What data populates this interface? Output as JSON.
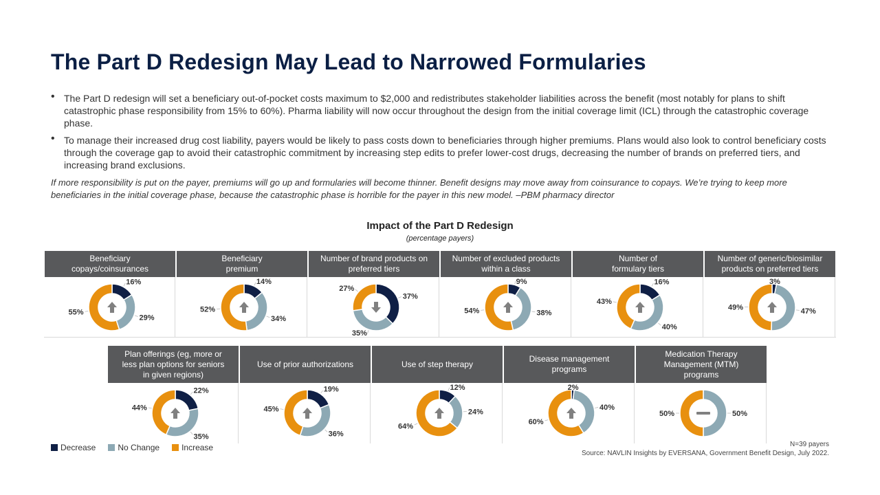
{
  "title": "The Part D Redesign May Lead to Narrowed Formularies",
  "bullets": [
    "The Part D redesign will set a beneficiary out-of-pocket costs maximum to $2,000 and redistributes stakeholder liabilities across the benefit (most notably for plans to shift catastrophic phase responsibility from 15% to 60%). Pharma liability will now occur throughout  the design from the initial coverage limit (ICL) through the catastrophic coverage phase.",
    "To manage their increased drug cost liability, payers would be likely to pass costs down to beneficiaries through  higher premiums. Plans would also look to control beneficiary costs through the coverage gap to avoid their catastrophic commitment by increasing step edits to prefer lower-cost drugs, decreasing the number of brands on preferred tiers, and increasing brand exclusions."
  ],
  "quote": "If more responsibility is put on the payer, premiums will go up and formularies will become thinner. Benefit designs may move away from coinsurance to copays. We’re trying to keep more beneficiaries in the initial coverage phase, because the catastrophic phase is horrible for the payer in this new model. –PBM pharmacy director",
  "colors": {
    "decrease": "#0f1f45",
    "no_change": "#8da9b4",
    "increase": "#e8900f",
    "header": "#58595b"
  },
  "legend": [
    {
      "key": "decrease",
      "label": "Decrease"
    },
    {
      "key": "no_change",
      "label": "No Change"
    },
    {
      "key": "increase",
      "label": "Increase"
    }
  ],
  "note": "N=39 payers",
  "source": "Source: NAVLIN Insights by EVERSANA, Government Benefit Design, July 2022.",
  "chart_data": {
    "type": "pie",
    "title": "Impact of the Part D Redesign",
    "subtitle": "(percentage  payers)",
    "series_names": [
      "Decrease",
      "No Change",
      "Increase"
    ],
    "panels": [
      {
        "label_lines": [
          "Beneficiary",
          "copays/coinsurances"
        ],
        "decrease": 16,
        "no_change": 29,
        "increase": 55,
        "direction_icon": "arrow-up"
      },
      {
        "label_lines": [
          "Beneficiary",
          "premium"
        ],
        "decrease": 14,
        "no_change": 34,
        "increase": 52,
        "direction_icon": "arrow-up"
      },
      {
        "label_lines": [
          "Number of brand products on",
          "preferred tiers"
        ],
        "decrease": 37,
        "no_change": 35,
        "increase": 27,
        "direction_icon": "arrow-down"
      },
      {
        "label_lines": [
          "Number of excluded products",
          "within a class"
        ],
        "decrease": 9,
        "no_change": 38,
        "increase": 54,
        "direction_icon": "arrow-up"
      },
      {
        "label_lines": [
          "Number of",
          "formulary tiers"
        ],
        "decrease": 16,
        "no_change": 40,
        "increase": 43,
        "direction_icon": "arrow-up"
      },
      {
        "label_lines": [
          "Number of generic/biosimilar",
          "products on preferred tiers"
        ],
        "decrease": 3,
        "no_change": 47,
        "increase": 49,
        "direction_icon": "arrow-up"
      },
      {
        "label_lines": [
          "Plan offerings (eg, more or",
          "less plan options for seniors",
          "in given regions)"
        ],
        "decrease": 22,
        "no_change": 35,
        "increase": 44,
        "direction_icon": "arrow-up"
      },
      {
        "label_lines": [
          "Use of prior authorizations"
        ],
        "decrease": 19,
        "no_change": 36,
        "increase": 45,
        "direction_icon": "arrow-up"
      },
      {
        "label_lines": [
          "Use of step therapy"
        ],
        "decrease": 12,
        "no_change": 24,
        "increase": 64,
        "direction_icon": "arrow-up"
      },
      {
        "label_lines": [
          "Disease management",
          "programs"
        ],
        "decrease": 2,
        "no_change": 40,
        "increase": 60,
        "direction_icon": "arrow-up"
      },
      {
        "label_lines": [
          "Medication Therapy",
          "Management (MTM)",
          "programs"
        ],
        "decrease": 0,
        "no_change": 50,
        "increase": 50,
        "direction_icon": "dash",
        "show_decrease_label": false
      }
    ]
  }
}
